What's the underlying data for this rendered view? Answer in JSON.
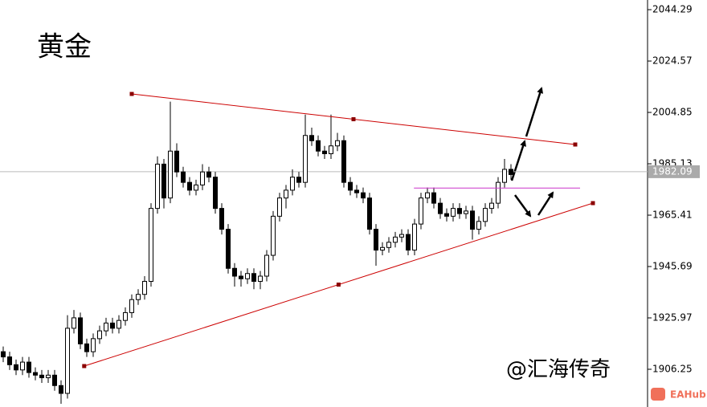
{
  "chart_data": {
    "type": "candlestick",
    "title": "黄金",
    "watermark": "@汇海传奇",
    "brand": "EAHub",
    "open": [
      1913,
      1911,
      1908,
      1906,
      1909,
      1905,
      1904,
      1903,
      1904,
      1900,
      1897,
      1922,
      1926,
      1916,
      1913,
      1918,
      1921,
      1924,
      1922,
      1925,
      1928,
      1933,
      1935,
      1940,
      1968,
      1985,
      1972,
      1990,
      1982,
      1978,
      1975,
      1977,
      1982,
      1980,
      1968,
      1960,
      1945,
      1942,
      1941,
      1943,
      1940,
      1942,
      1950,
      1965,
      1972,
      1975,
      1980,
      1978,
      1996,
      1994,
      1990,
      1989,
      1992,
      1994,
      1978,
      1975,
      1974,
      1972,
      1960,
      1952,
      1953,
      1955,
      1957,
      1958,
      1952,
      1962,
      1972,
      1974,
      1970,
      1966,
      1965,
      1968,
      1966,
      1967,
      1960,
      1963,
      1968,
      1970,
      1978,
      1983
    ],
    "high": [
      1915,
      1913,
      1910,
      1911,
      1911,
      1907,
      1906,
      1906,
      1906,
      1902,
      1927,
      1929,
      1928,
      1918,
      1920,
      1923,
      1926,
      1926,
      1927,
      1930,
      1935,
      1937,
      1942,
      1970,
      1988,
      1987,
      2009,
      1993,
      1984,
      1980,
      1979,
      1985,
      1984,
      1982,
      1970,
      1962,
      1947,
      1944,
      1945,
      1945,
      1944,
      1952,
      1967,
      1974,
      1977,
      1983,
      1982,
      2004,
      1999,
      1996,
      1992,
      2004,
      1997,
      1996,
      1980,
      1977,
      1976,
      1974,
      1962,
      1955,
      1957,
      1959,
      1960,
      1960,
      1964,
      1974,
      1976,
      1976,
      1972,
      1968,
      1970,
      1970,
      1969,
      1969,
      1965,
      1970,
      1972,
      1980,
      1987,
      1985
    ],
    "low": [
      1909,
      1906,
      1904,
      1904,
      1903,
      1902,
      1901,
      1901,
      1898,
      1893,
      1895,
      1920,
      1914,
      1911,
      1911,
      1916,
      1919,
      1920,
      1920,
      1923,
      1926,
      1931,
      1933,
      1938,
      1966,
      1968,
      1970,
      1980,
      1976,
      1973,
      1973,
      1975,
      1978,
      1966,
      1958,
      1943,
      1938,
      1938,
      1939,
      1937,
      1937,
      1940,
      1948,
      1963,
      1968,
      1973,
      1976,
      1976,
      1992,
      1988,
      1987,
      1987,
      1990,
      1976,
      1973,
      1972,
      1970,
      1958,
      1946,
      1950,
      1951,
      1953,
      1955,
      1950,
      1950,
      1960,
      1970,
      1968,
      1964,
      1963,
      1963,
      1964,
      1964,
      1956,
      1958,
      1961,
      1966,
      1968,
      1976,
      1979
    ],
    "close": [
      1911,
      1908,
      1906,
      1909,
      1905,
      1904,
      1903,
      1904,
      1900,
      1897,
      1922,
      1926,
      1916,
      1913,
      1918,
      1921,
      1924,
      1922,
      1925,
      1928,
      1933,
      1935,
      1940,
      1968,
      1985,
      1972,
      1990,
      1982,
      1978,
      1975,
      1977,
      1982,
      1980,
      1968,
      1960,
      1945,
      1942,
      1941,
      1943,
      1940,
      1942,
      1950,
      1965,
      1972,
      1975,
      1980,
      1978,
      1996,
      1994,
      1990,
      1989,
      1992,
      1994,
      1978,
      1975,
      1974,
      1972,
      1960,
      1952,
      1953,
      1955,
      1957,
      1958,
      1952,
      1962,
      1972,
      1974,
      1970,
      1966,
      1965,
      1968,
      1966,
      1967,
      1960,
      1963,
      1968,
      1970,
      1978,
      1983,
      1981
    ],
    "ylim": [
      1891.77,
      2048.0
    ],
    "yticks": [
      2044.29,
      2024.57,
      2004.85,
      1985.13,
      1965.41,
      1945.69,
      1925.97,
      1906.25
    ],
    "current_price": 1982.09,
    "lines": [
      {
        "color": "#cc0000",
        "x": [
          20,
          89
        ],
        "y": [
          2011.94,
          1992.53
        ]
      },
      {
        "color": "#cc0000",
        "x": [
          12.6,
          91.75
        ],
        "y": [
          1907.48,
          1970.03
        ]
      },
      {
        "color": "#cc33cc",
        "x": [
          63.9,
          89.75
        ],
        "y": [
          1975.8,
          1975.8
        ]
      }
    ]
  }
}
